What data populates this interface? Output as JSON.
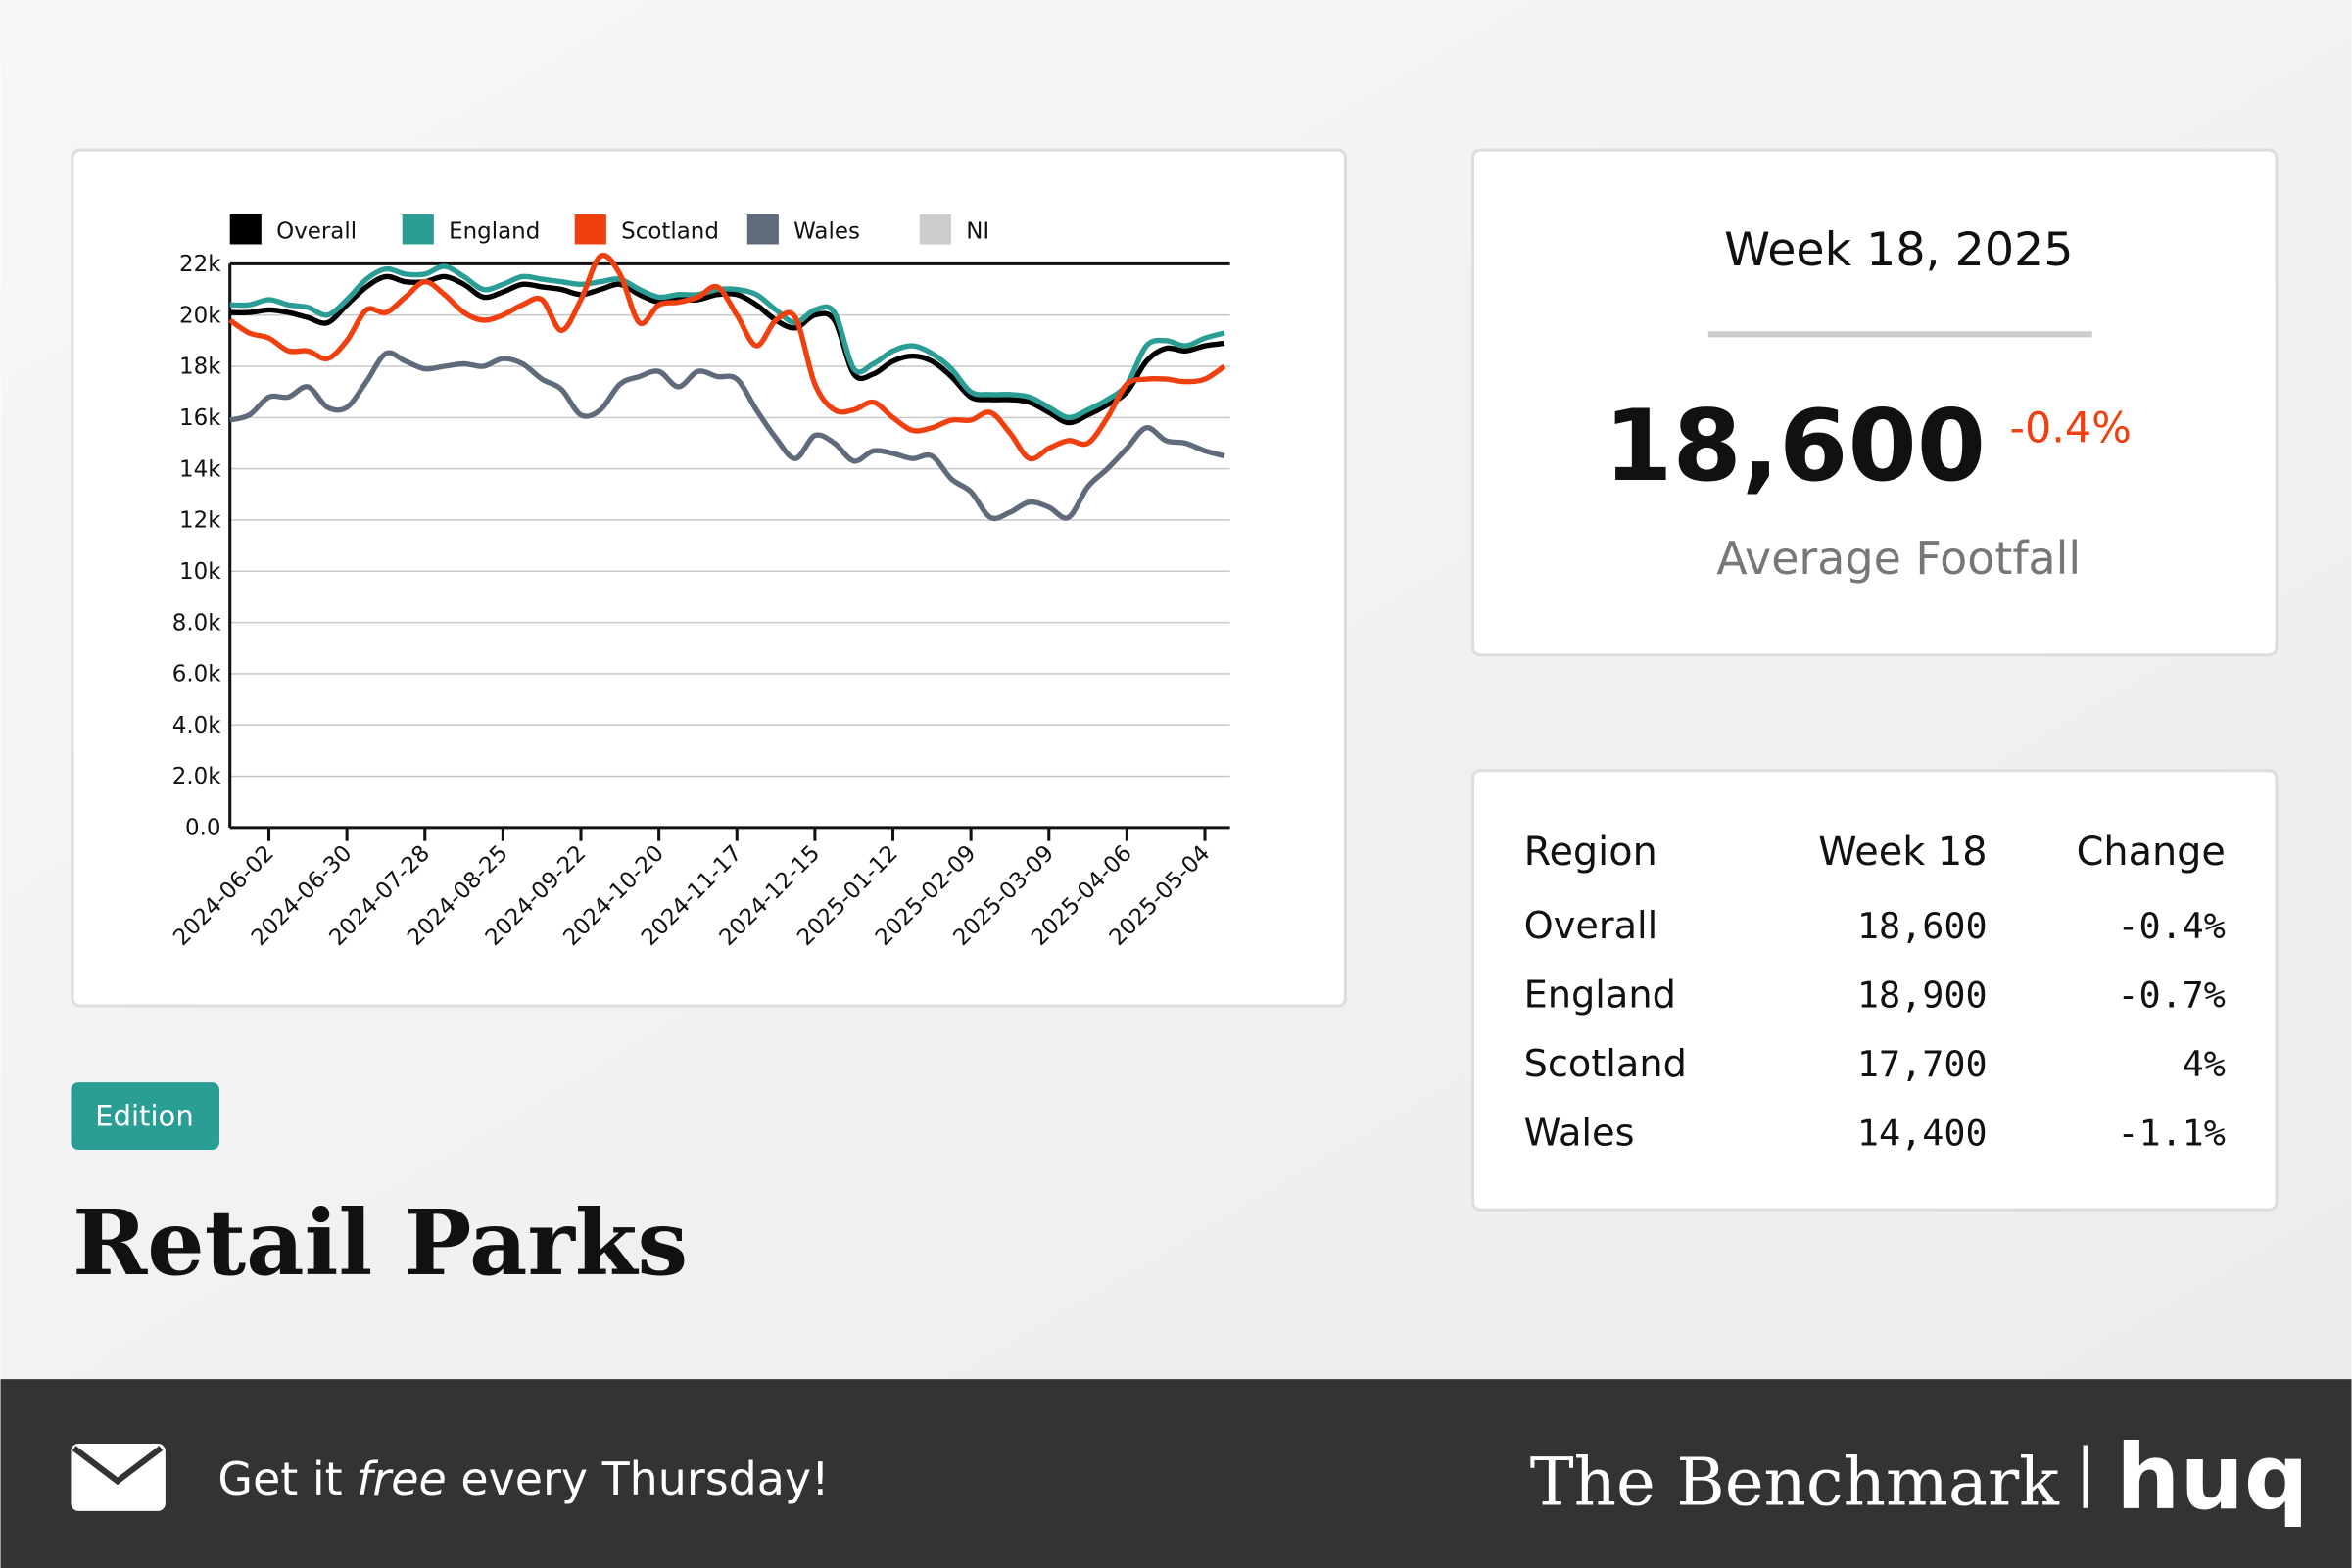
{
  "chart_data": {
    "type": "line",
    "x": [
      "2024-05-19",
      "2024-05-26",
      "2024-06-02",
      "2024-06-09",
      "2024-06-16",
      "2024-06-23",
      "2024-06-30",
      "2024-07-07",
      "2024-07-14",
      "2024-07-21",
      "2024-07-28",
      "2024-08-04",
      "2024-08-11",
      "2024-08-18",
      "2024-08-25",
      "2024-09-01",
      "2024-09-08",
      "2024-09-15",
      "2024-09-22",
      "2024-09-29",
      "2024-10-06",
      "2024-10-13",
      "2024-10-20",
      "2024-10-27",
      "2024-11-03",
      "2024-11-10",
      "2024-11-17",
      "2024-11-24",
      "2024-12-01",
      "2024-12-08",
      "2024-12-15",
      "2024-12-22",
      "2024-12-29",
      "2025-01-05",
      "2025-01-12",
      "2025-01-19",
      "2025-01-26",
      "2025-02-02",
      "2025-02-09",
      "2025-02-16",
      "2025-02-23",
      "2025-03-02",
      "2025-03-09",
      "2025-03-16",
      "2025-03-23",
      "2025-03-30",
      "2025-04-06",
      "2025-04-13",
      "2025-04-20",
      "2025-04-27",
      "2025-05-04",
      "2025-05-11"
    ],
    "series": [
      {
        "name": "Overall",
        "color": "#000000",
        "values": [
          20100,
          20100,
          20200,
          20100,
          19900,
          19700,
          20400,
          21100,
          21500,
          21300,
          21300,
          21500,
          21200,
          20700,
          20900,
          21200,
          21100,
          21000,
          20800,
          21000,
          21200,
          20800,
          20500,
          20600,
          20600,
          20800,
          20800,
          20400,
          19800,
          19500,
          20000,
          19800,
          17700,
          17700,
          18200,
          18400,
          18200,
          17600,
          16800,
          16700,
          16700,
          16600,
          16200,
          15800,
          16100,
          16500,
          17000,
          18200,
          18700,
          18600,
          18800,
          18900
        ]
      },
      {
        "name": "England",
        "color": "#2a9d95",
        "values": [
          20400,
          20400,
          20600,
          20400,
          20300,
          20000,
          20600,
          21400,
          21800,
          21600,
          21600,
          21900,
          21500,
          21000,
          21200,
          21500,
          21400,
          21300,
          21200,
          21300,
          21400,
          21000,
          20700,
          20800,
          20800,
          21000,
          21000,
          20800,
          20200,
          19700,
          20200,
          20100,
          17900,
          18100,
          18600,
          18800,
          18500,
          17900,
          17000,
          16900,
          16900,
          16800,
          16400,
          16000,
          16300,
          16700,
          17300,
          18800,
          19000,
          18800,
          19100,
          19300
        ]
      },
      {
        "name": "Scotland",
        "color": "#f0400f",
        "values": [
          19800,
          19300,
          19100,
          18600,
          18600,
          18300,
          19000,
          20200,
          20100,
          20700,
          21300,
          20800,
          20100,
          19800,
          20000,
          20400,
          20600,
          19400,
          20600,
          22300,
          21600,
          19700,
          20400,
          20500,
          20700,
          21100,
          20000,
          18800,
          19800,
          19900,
          17300,
          16300,
          16300,
          16600,
          16000,
          15500,
          15600,
          15900,
          15900,
          16200,
          15400,
          14400,
          14800,
          15100,
          15000,
          16000,
          17300,
          17500,
          17500,
          17400,
          17500,
          18000
        ]
      },
      {
        "name": "Wales",
        "color": "#5f6b7a",
        "values": [
          15900,
          16100,
          16800,
          16800,
          17200,
          16400,
          16400,
          17400,
          18500,
          18200,
          17900,
          18000,
          18100,
          18000,
          18300,
          18100,
          17500,
          17100,
          16100,
          16300,
          17300,
          17600,
          17800,
          17200,
          17800,
          17600,
          17500,
          16300,
          15200,
          14400,
          15300,
          15000,
          14300,
          14700,
          14600,
          14400,
          14500,
          13600,
          13100,
          12100,
          12300,
          12700,
          12500,
          12100,
          13300,
          14000,
          14800,
          15600,
          15100,
          15000,
          14700,
          14500
        ]
      },
      {
        "name": "NI",
        "color": "#cccccc",
        "values": [
          null,
          null,
          null,
          null,
          null,
          null,
          null,
          null,
          null,
          null,
          null,
          null,
          null,
          null,
          null,
          null,
          null,
          null,
          null,
          null,
          null,
          null,
          null,
          null,
          null,
          null,
          null,
          null,
          null,
          null,
          null,
          null,
          null,
          null,
          null,
          null,
          null,
          null,
          null,
          null,
          null,
          null,
          null,
          null,
          null,
          null,
          null,
          null,
          null,
          null,
          null,
          null
        ]
      }
    ],
    "xlim": [
      "2024-05-19",
      "2025-05-13"
    ],
    "xticks": [
      "2024-06-02",
      "2024-06-30",
      "2024-07-28",
      "2024-08-25",
      "2024-09-22",
      "2024-10-20",
      "2024-11-17",
      "2024-12-15",
      "2025-01-12",
      "2025-02-09",
      "2025-03-09",
      "2025-04-06",
      "2025-05-04"
    ],
    "ylim": [
      0,
      22000
    ],
    "yticks": [
      {
        "value": 0,
        "label": "0.0"
      },
      {
        "value": 2000,
        "label": "2.0k"
      },
      {
        "value": 4000,
        "label": "4.0k"
      },
      {
        "value": 6000,
        "label": "6.0k"
      },
      {
        "value": 8000,
        "label": "8.0k"
      },
      {
        "value": 10000,
        "label": "10k"
      },
      {
        "value": 12000,
        "label": "12k"
      },
      {
        "value": 14000,
        "label": "14k"
      },
      {
        "value": 16000,
        "label": "16k"
      },
      {
        "value": 18000,
        "label": "18k"
      },
      {
        "value": 20000,
        "label": "20k"
      },
      {
        "value": 22000,
        "label": "22k"
      }
    ],
    "grid": true,
    "legend": "top"
  },
  "badge": "Edition",
  "title": "Retail Parks",
  "summary": {
    "week": "Week 18, 2025",
    "value": "18,600",
    "change": "-0.4%",
    "label": "Average Footfall"
  },
  "table": {
    "header": [
      "Region",
      "Week 18",
      "Change"
    ],
    "rows": [
      [
        "Overall",
        "18,600",
        "-0.4%"
      ],
      [
        "England",
        "18,900",
        "-0.7%"
      ],
      [
        "Scotland",
        "17,700",
        "4%"
      ],
      [
        "Wales",
        "14,400",
        "-1.1%"
      ]
    ]
  },
  "footer": {
    "cta": [
      "Get it ",
      "free",
      " every Thursday!"
    ],
    "brand": "The Benchmark",
    "logo": "huq"
  }
}
